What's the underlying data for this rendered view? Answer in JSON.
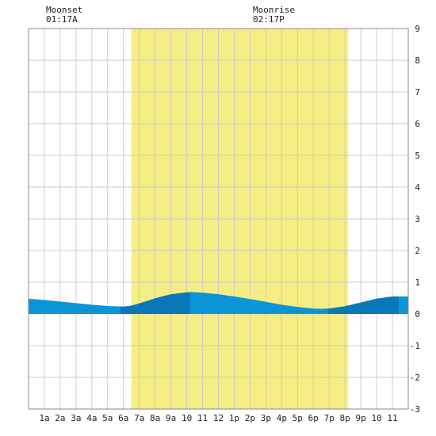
{
  "moon": {
    "set_label": "Moonset",
    "set_time": "01:17A",
    "rise_label": "Moonrise",
    "rise_time": "02:17P"
  },
  "colors": {
    "daylight": "#f5ee84",
    "tide_light": "#0a96d6",
    "tide_dark": "#0a78b8",
    "grid": "#cccccc",
    "frame": "#888888"
  },
  "chart_data": {
    "type": "area",
    "x_tick_labels": [
      "1a",
      "2a",
      "3a",
      "4a",
      "5a",
      "6a",
      "7a",
      "8a",
      "9a",
      "10",
      "11",
      "12",
      "1p",
      "2p",
      "3p",
      "4p",
      "5p",
      "6p",
      "7p",
      "8p",
      "9p",
      "10",
      "11"
    ],
    "y_tick_labels": [
      "9",
      "8",
      "7",
      "6",
      "5",
      "4",
      "3",
      "2",
      "1",
      "0",
      "-1",
      "-2",
      "-3"
    ],
    "xlim": [
      0,
      24
    ],
    "ylim": [
      -3,
      9
    ],
    "daylight_hours": [
      6.5,
      20.2
    ],
    "dark_bands_hours": [
      [
        5.8,
        10.2
      ],
      [
        18.9,
        23.4
      ]
    ],
    "series": [
      {
        "x": [
          0,
          1,
          2,
          3,
          4,
          5,
          6,
          6.5,
          7,
          8,
          9,
          10,
          10.3,
          11,
          12,
          13,
          14,
          15,
          16,
          17,
          18,
          18.5,
          19,
          20,
          21,
          22,
          23,
          24
        ],
        "values": [
          0.48,
          0.44,
          0.39,
          0.34,
          0.29,
          0.25,
          0.23,
          0.26,
          0.33,
          0.49,
          0.62,
          0.68,
          0.69,
          0.67,
          0.62,
          0.55,
          0.47,
          0.38,
          0.29,
          0.22,
          0.17,
          0.16,
          0.17,
          0.24,
          0.36,
          0.48,
          0.55,
          0.55
        ]
      }
    ]
  }
}
